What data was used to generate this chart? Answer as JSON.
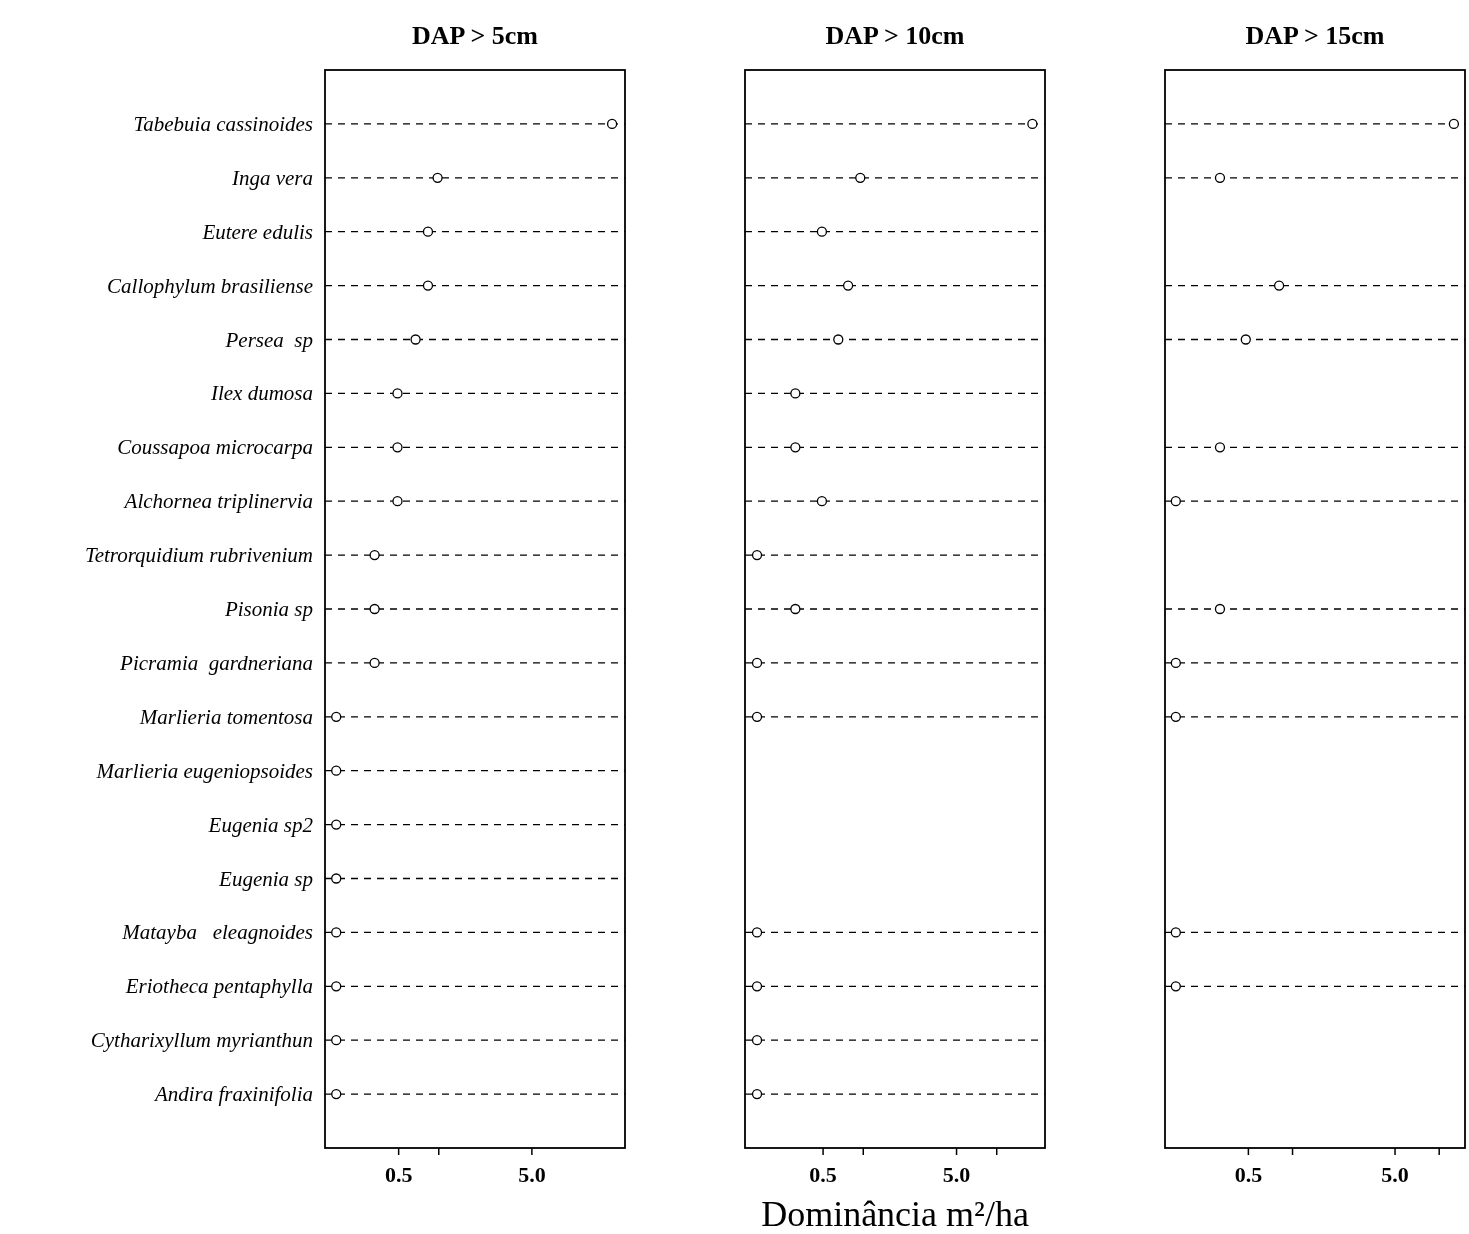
{
  "chart_data": [
    {
      "type": "scatter",
      "title": "DAP > 5cm",
      "orientation": "horizontal",
      "log": "x",
      "marker": "circle",
      "grid": "y",
      "categories": [
        "Tabebuia cassinoides",
        "Inga vera",
        "Eutere edulis",
        "Callophylum brasiliense",
        "Persea  sp",
        "Ilex dumosa",
        "Coussapoa microcarpa",
        "Alchornea triplinervia",
        "Tetrorquidium rubrivenium",
        "Pisonia sp",
        "Picramia  gardneriana",
        "Marlieria tomentosa",
        "Marlieria eugeniopsoides",
        "Eugenia sp2",
        "Eugenia sp",
        "Matayba   eleagnoides",
        "Eriotheca pentaphylla",
        "Cytharixyllum myrianthun",
        "Andira fraxinifolia"
      ],
      "values": [
        20,
        0.98,
        0.83,
        0.83,
        0.67,
        0.49,
        0.49,
        0.49,
        0.33,
        0.33,
        0.33,
        0.17,
        0.17,
        0.17,
        0.17,
        0.17,
        0.17,
        0.17,
        0.17
      ],
      "xlim": [
        0.14,
        25
      ],
      "xticks": [
        {
          "value": 0.5,
          "label": "0.5"
        },
        {
          "value": 1,
          "label": null
        },
        {
          "value": 5,
          "label": "5.0"
        }
      ]
    },
    {
      "type": "scatter",
      "title": "DAP > 10cm",
      "xlabel": "Dominância m²/ha",
      "orientation": "horizontal",
      "log": "x",
      "marker": "circle",
      "grid": "y",
      "tick_labels": "x",
      "values": [
        18.5,
        0.95,
        0.49,
        0.77,
        0.65,
        0.31,
        0.31,
        0.49,
        0.16,
        0.31,
        0.16,
        0.16,
        null,
        null,
        null,
        0.16,
        0.16,
        0.16,
        0.16
      ],
      "xlim": [
        0.13,
        23
      ],
      "xticks": [
        {
          "value": 0.5,
          "label": "0.5"
        },
        {
          "value": 1,
          "label": null
        },
        {
          "value": 5,
          "label": "5.0"
        },
        {
          "value": 10,
          "label": null
        }
      ]
    },
    {
      "type": "scatter",
      "title": "DAP > 15cm",
      "orientation": "horizontal",
      "log": "x",
      "marker": "circle",
      "grid": "y",
      "tick_labels": "x",
      "values": [
        12.6,
        0.32,
        null,
        0.81,
        0.48,
        null,
        0.32,
        0.16,
        null,
        0.32,
        0.16,
        0.16,
        null,
        null,
        null,
        0.16,
        0.16,
        null,
        null
      ],
      "xlim": [
        0.135,
        15
      ],
      "xticks": [
        {
          "value": 0.5,
          "label": "0.5"
        },
        {
          "value": 1,
          "label": null
        },
        {
          "value": 5,
          "label": "5.0"
        },
        {
          "value": 10,
          "label": null
        }
      ]
    }
  ]
}
